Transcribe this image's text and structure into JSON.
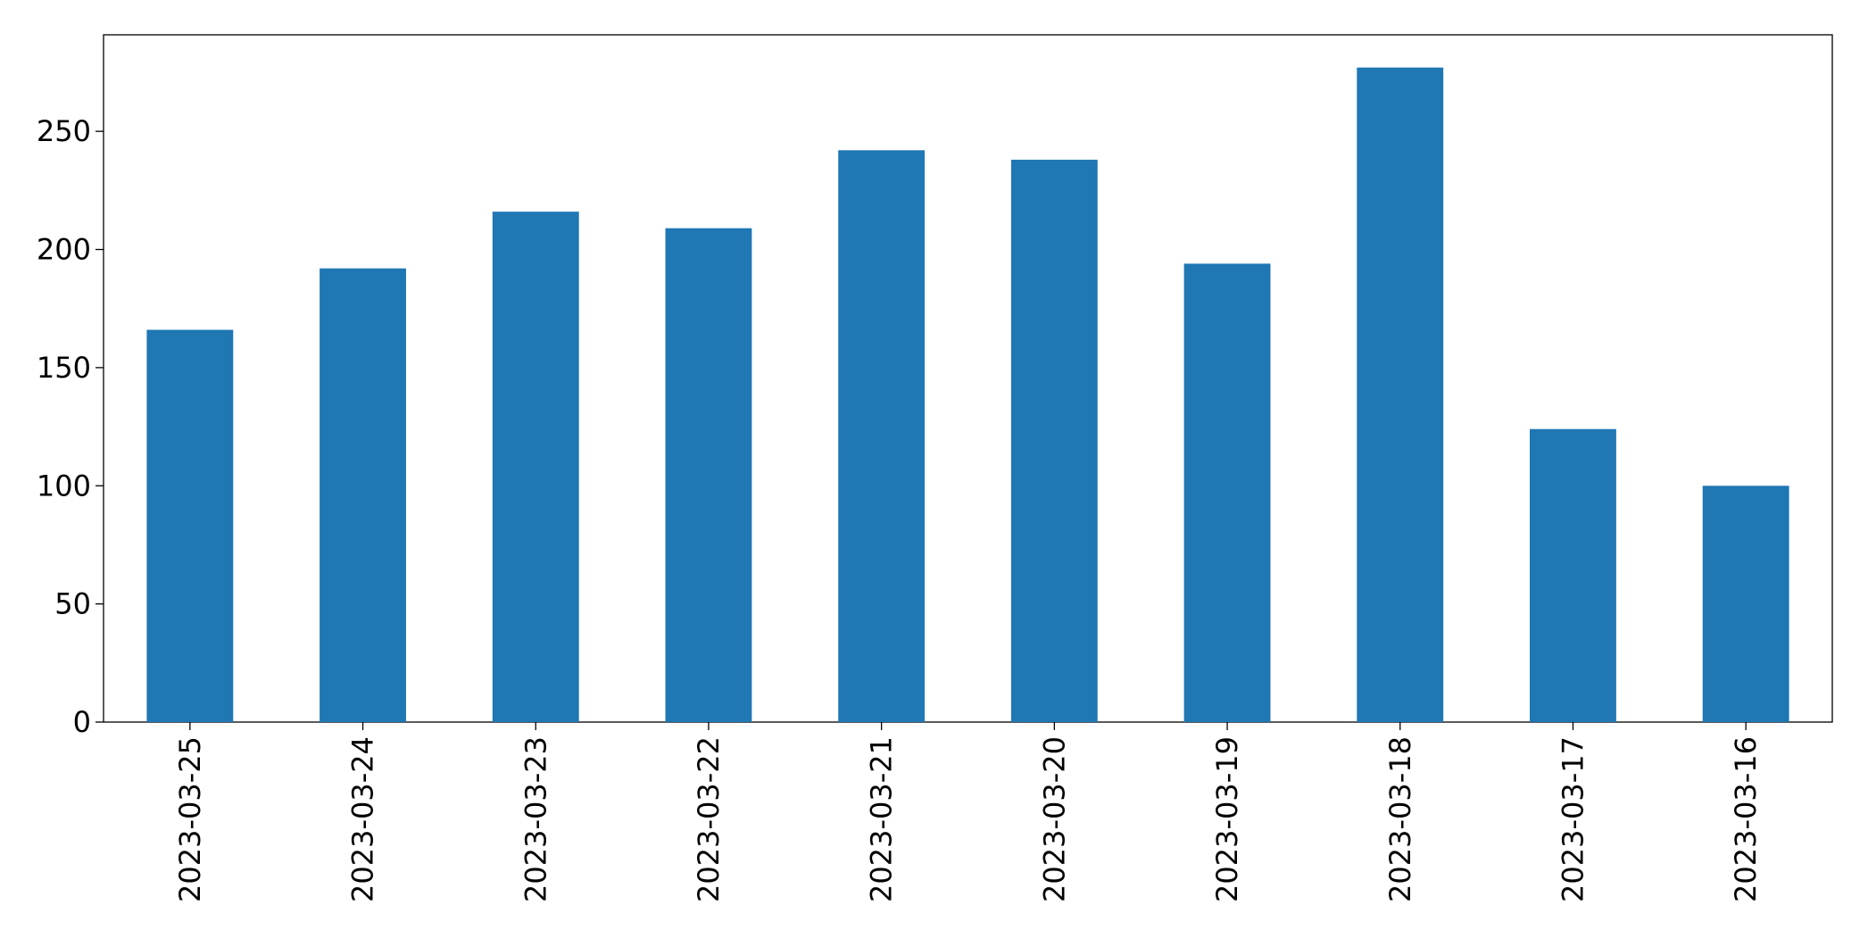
{
  "chart_data": {
    "type": "bar",
    "categories": [
      "2023-03-25",
      "2023-03-24",
      "2023-03-23",
      "2023-03-22",
      "2023-03-21",
      "2023-03-20",
      "2023-03-19",
      "2023-03-18",
      "2023-03-17",
      "2023-03-16"
    ],
    "values": [
      166,
      192,
      216,
      209,
      242,
      238,
      194,
      277,
      124,
      100
    ],
    "color": "#1f77b4",
    "ylim": [
      0,
      290.85
    ],
    "yticks": [
      0,
      50,
      100,
      150,
      200,
      250
    ],
    "grid": false
  }
}
